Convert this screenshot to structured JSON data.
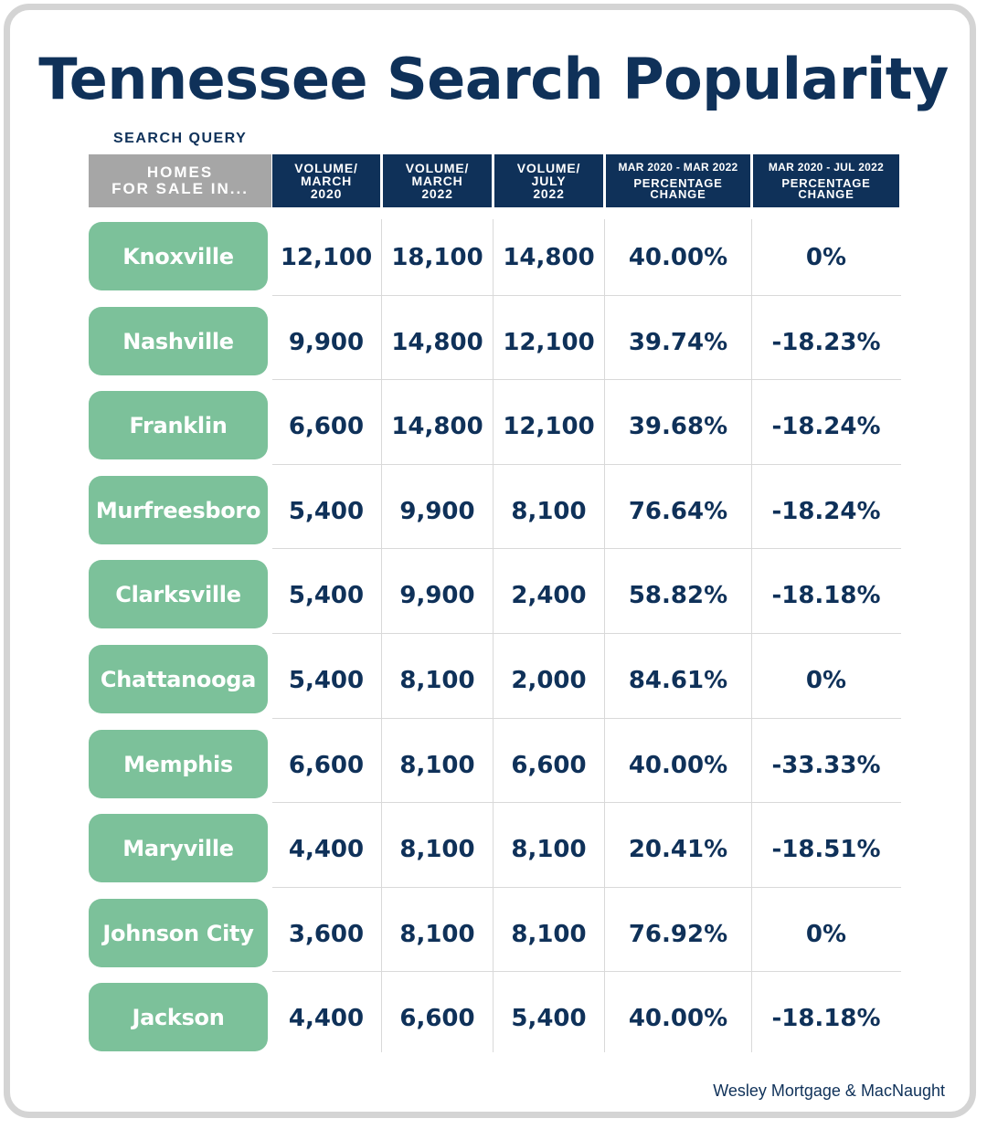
{
  "title": "Tennessee Search Popularity",
  "search_query_label": "SEARCH QUERY",
  "headers": {
    "city": "HOMES\nFOR SALE IN...",
    "vol_mar_2020": "VOLUME/\nMARCH\n2020",
    "vol_mar_2022": "VOLUME/\nMARCH\n2022",
    "vol_jul_2022": "VOLUME/\nJULY\n2022",
    "pct1_range": "MAR 2020 - MAR 2022",
    "pct1_label": "PERCENTAGE\nCHANGE",
    "pct2_range": "MAR 2020 - JUL 2022",
    "pct2_label": "PERCENTAGE\nCHANGE"
  },
  "credit": "Wesley Mortgage & MacNaught",
  "colors": {
    "navy": "#0f3159",
    "green": "#7cc19a",
    "grey": "#a6a6a6"
  },
  "chart_data": {
    "type": "table",
    "title": "Tennessee Search Popularity",
    "columns": [
      "HOMES FOR SALE IN...",
      "VOLUME/ MARCH 2020",
      "VOLUME/ MARCH 2022",
      "VOLUME/ JULY 2022",
      "MAR 2020 - MAR 2022 PERCENTAGE CHANGE",
      "MAR 2020 - JUL 2022 PERCENTAGE CHANGE"
    ],
    "rows": [
      {
        "city": "Knoxville",
        "mar2020": "12,100",
        "mar2022": "18,100",
        "jul2022": "14,800",
        "pct_mar": "40.00%",
        "pct_jul": "0%"
      },
      {
        "city": "Nashville",
        "mar2020": "9,900",
        "mar2022": "14,800",
        "jul2022": "12,100",
        "pct_mar": "39.74%",
        "pct_jul": "-18.23%"
      },
      {
        "city": "Franklin",
        "mar2020": "6,600",
        "mar2022": "14,800",
        "jul2022": "12,100",
        "pct_mar": "39.68%",
        "pct_jul": "-18.24%"
      },
      {
        "city": "Murfreesboro",
        "mar2020": "5,400",
        "mar2022": "9,900",
        "jul2022": "8,100",
        "pct_mar": "76.64%",
        "pct_jul": "-18.24%"
      },
      {
        "city": "Clarksville",
        "mar2020": "5,400",
        "mar2022": "9,900",
        "jul2022": "2,400",
        "pct_mar": "58.82%",
        "pct_jul": "-18.18%"
      },
      {
        "city": "Chattanooga",
        "mar2020": "5,400",
        "mar2022": "8,100",
        "jul2022": "2,000",
        "pct_mar": "84.61%",
        "pct_jul": "0%"
      },
      {
        "city": "Memphis",
        "mar2020": "6,600",
        "mar2022": "8,100",
        "jul2022": "6,600",
        "pct_mar": "40.00%",
        "pct_jul": "-33.33%"
      },
      {
        "city": "Maryville",
        "mar2020": "4,400",
        "mar2022": "8,100",
        "jul2022": "8,100",
        "pct_mar": "20.41%",
        "pct_jul": "-18.51%"
      },
      {
        "city": "Johnson City",
        "mar2020": "3,600",
        "mar2022": "8,100",
        "jul2022": "8,100",
        "pct_mar": "76.92%",
        "pct_jul": "0%"
      },
      {
        "city": "Jackson",
        "mar2020": "4,400",
        "mar2022": "6,600",
        "jul2022": "5,400",
        "pct_mar": "40.00%",
        "pct_jul": "-18.18%"
      }
    ]
  }
}
